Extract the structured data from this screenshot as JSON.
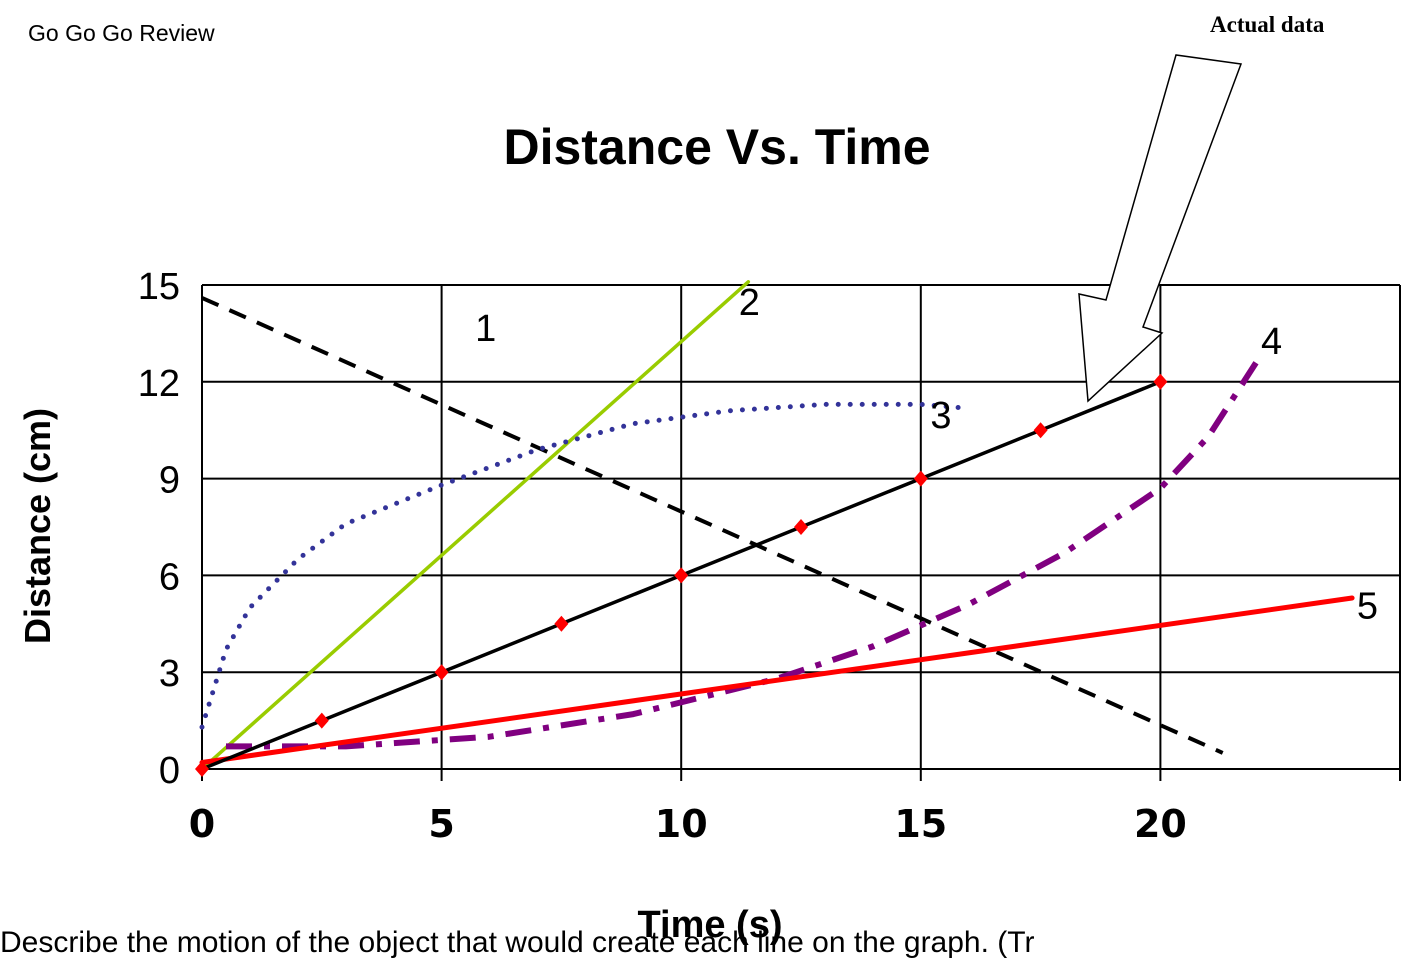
{
  "page": {
    "header": "Go Go Go Review",
    "callout": "Actual data",
    "footer": "Describe the motion of the object that would create each line on the graph. (Tr"
  },
  "chart_data": {
    "type": "line",
    "title": "Distance Vs. Time",
    "xlabel": "Time (s)",
    "ylabel": "Distance (cm)",
    "xlim": [
      0,
      25
    ],
    "ylim": [
      0,
      15
    ],
    "x_ticks": [
      "0",
      "5",
      "10",
      "15",
      "20"
    ],
    "y_ticks": [
      "0",
      "3",
      "6",
      "9",
      "12",
      "15"
    ],
    "grid": true,
    "series": [
      {
        "name": "1",
        "color": "#000000",
        "style": "dashed",
        "points": [
          [
            0,
            14.6
          ],
          [
            21.3,
            0.5
          ]
        ]
      },
      {
        "name": "2",
        "color": "#99cc00",
        "style": "solid",
        "points": [
          [
            0,
            0
          ],
          [
            11.4,
            15.1
          ]
        ]
      },
      {
        "name": "3",
        "color": "#333399",
        "style": "dotted",
        "points": [
          [
            0,
            1.3
          ],
          [
            0.5,
            3.7
          ],
          [
            1,
            5
          ],
          [
            2,
            6.5
          ],
          [
            3,
            7.6
          ],
          [
            5,
            8.8
          ],
          [
            7,
            9.9
          ],
          [
            9,
            10.7
          ],
          [
            11,
            11.1
          ],
          [
            13,
            11.3
          ],
          [
            15,
            11.3
          ],
          [
            15.8,
            11.2
          ]
        ]
      },
      {
        "name": "4",
        "color": "#800080",
        "style": "dashdot",
        "points": [
          [
            0.5,
            0.7
          ],
          [
            3,
            0.7
          ],
          [
            6,
            1
          ],
          [
            9,
            1.7
          ],
          [
            12,
            2.8
          ],
          [
            14,
            3.8
          ],
          [
            16,
            5.1
          ],
          [
            18,
            6.7
          ],
          [
            20,
            8.7
          ],
          [
            21,
            10.3
          ],
          [
            22,
            12.6
          ]
        ]
      },
      {
        "name": "5",
        "color": "#ff0000",
        "style": "solid",
        "points": [
          [
            0,
            0.2
          ],
          [
            24,
            5.3
          ]
        ]
      },
      {
        "name": "Actual data",
        "color": "#000000",
        "style": "solid-markers",
        "marker_color": "#ff0000",
        "points": [
          [
            0,
            0
          ],
          [
            2.5,
            1.5
          ],
          [
            5,
            3
          ],
          [
            7.5,
            4.5
          ],
          [
            10,
            6
          ],
          [
            12.5,
            7.5
          ],
          [
            15,
            9
          ],
          [
            17.5,
            10.5
          ],
          [
            20,
            12
          ]
        ]
      }
    ]
  }
}
